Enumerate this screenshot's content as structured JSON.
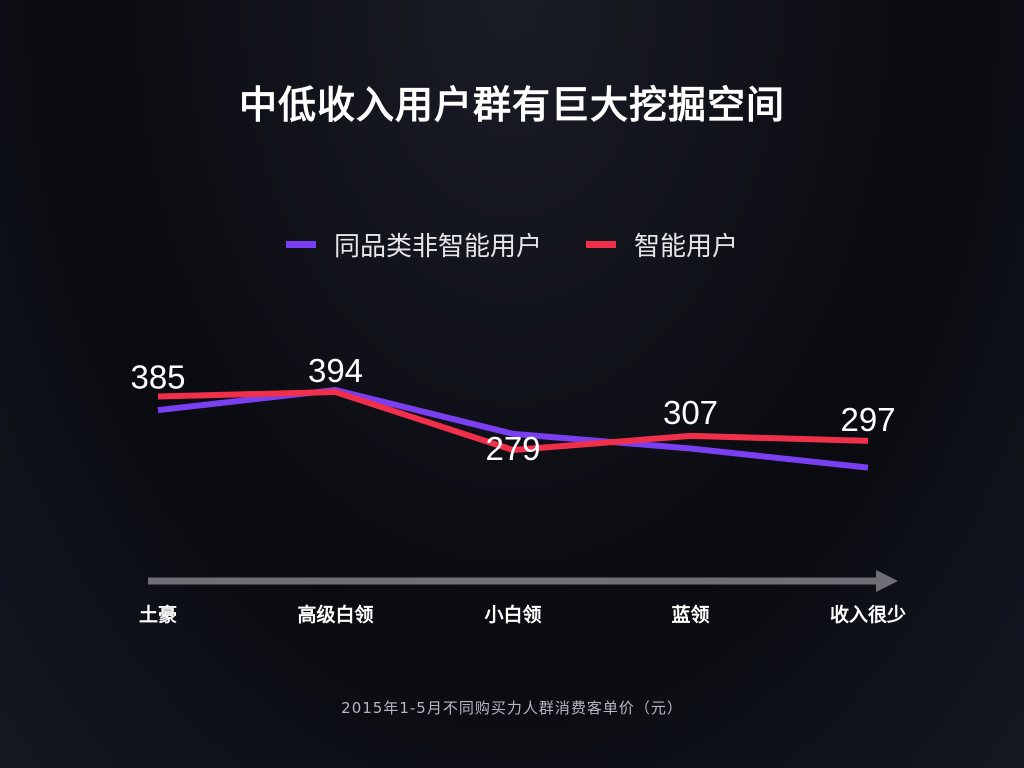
{
  "slide": {
    "title": "中低收入用户群有巨大挖掘空间",
    "footnote": "2015年1-5月不同购买力人群消费客单价（元）"
  },
  "colors": {
    "background": "#0d0e14",
    "purple_series": "#7b3ff2",
    "red_series": "#f0304a",
    "axis_arrow": "#6e7076",
    "text": "#ffffff"
  },
  "chart_data": {
    "type": "line",
    "categories": [
      "土豪",
      "高级白领",
      "小白领",
      "蓝领",
      "收入很少"
    ],
    "series": [
      {
        "name": "同品类非智能用户",
        "color": "#7b3ff2",
        "values": [
          358,
          398,
          311,
          282,
          244
        ],
        "labels": []
      },
      {
        "name": "智能用户",
        "color": "#f0304a",
        "values": [
          385,
          394,
          279,
          307,
          297
        ],
        "labels": [
          "385",
          "394",
          "279",
          "307",
          "297"
        ]
      }
    ],
    "legend": {
      "placement": "top-center",
      "entries": [
        "同品类非智能用户",
        "智能用户"
      ]
    },
    "y_axis_shown": false,
    "grid": false,
    "x_axis": "arrow pointing right"
  }
}
